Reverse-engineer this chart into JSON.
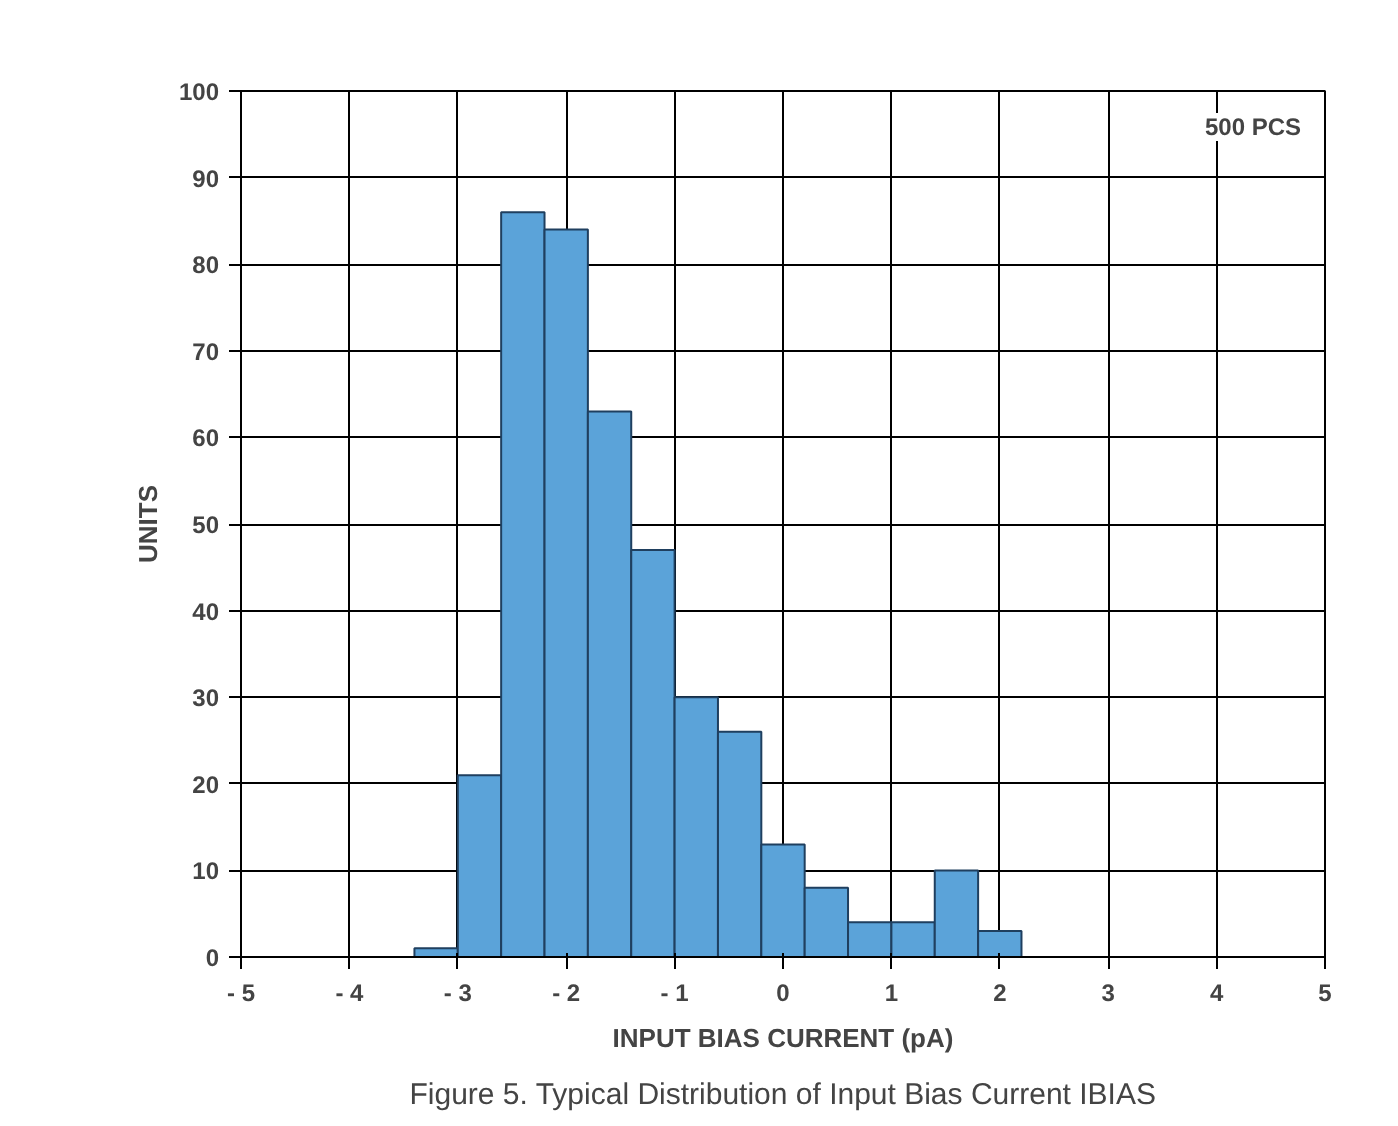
{
  "chart_data": {
    "type": "histogram",
    "xlabel": "INPUT BIAS CURRENT (pA)",
    "ylabel": "UNITS",
    "bins": [
      -3.4,
      -3.0,
      -2.6,
      -2.2,
      -1.8,
      -1.4,
      -1.0,
      -0.6,
      -0.2,
      0.2,
      0.6,
      1.0,
      1.4,
      1.8,
      2.2
    ],
    "values": [
      1,
      21,
      86,
      84,
      63,
      47,
      30,
      26,
      13,
      8,
      4,
      4,
      10,
      3
    ],
    "color": "#5ba3d9",
    "xlim": [
      -5,
      5
    ],
    "xticks": [
      {
        "value": -5,
        "label": "- 5"
      },
      {
        "value": -4,
        "label": "- 4"
      },
      {
        "value": -3,
        "label": "- 3"
      },
      {
        "value": -2,
        "label": "- 2"
      },
      {
        "value": -1,
        "label": "- 1"
      },
      0,
      1,
      2,
      3,
      4,
      5
    ],
    "ylim": [
      0,
      100
    ],
    "yticks": [
      0,
      10,
      20,
      30,
      40,
      50,
      60,
      70,
      80,
      90,
      100
    ],
    "grid": true,
    "annotations": [
      "500 PCS",
      "Figure 5. Typical Distribution of Input Bias Current IBIAS"
    ]
  }
}
